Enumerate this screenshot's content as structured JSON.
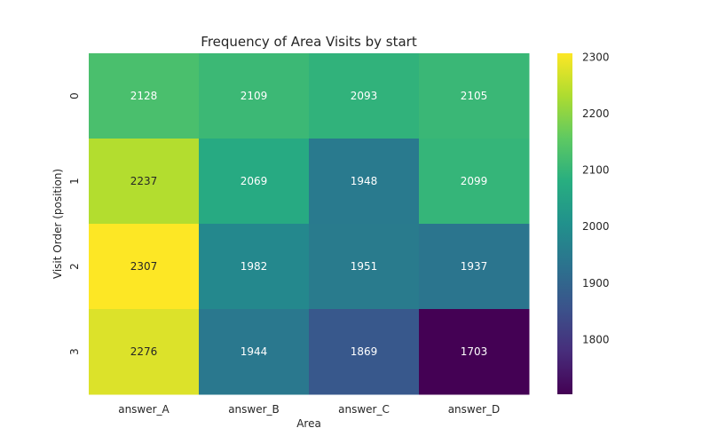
{
  "chart_data": {
    "type": "heatmap",
    "title": "Frequency of Area Visits by start",
    "xlabel": "Area",
    "ylabel": "Visit Order (position)",
    "x_categories": [
      "answer_A",
      "answer_B",
      "answer_C",
      "answer_D"
    ],
    "y_categories": [
      "0",
      "1",
      "2",
      "3"
    ],
    "values": [
      [
        2128,
        2109,
        2093,
        2105
      ],
      [
        2237,
        2069,
        1948,
        2099
      ],
      [
        2307,
        1982,
        1951,
        1937
      ],
      [
        2276,
        1944,
        1869,
        1703
      ]
    ],
    "colormap": "viridis",
    "colorbar": {
      "range": [
        1703,
        2307
      ],
      "ticks": [
        1800,
        1900,
        2000,
        2100,
        2200,
        2300
      ]
    }
  }
}
